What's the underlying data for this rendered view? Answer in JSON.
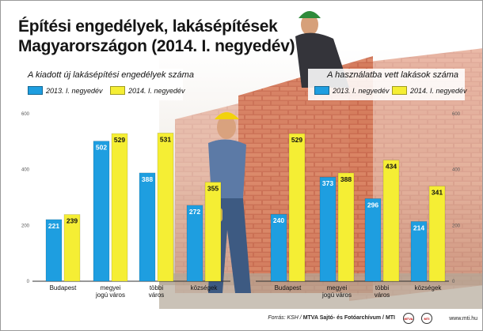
{
  "title": {
    "line1": "Építési engedélyek, lakásépítések",
    "line2": "Magyarországon (2014. I. negyedév)"
  },
  "colors": {
    "blue": "#1e9ee0",
    "yellow": "#f5ee34"
  },
  "chart_data": [
    {
      "type": "bar",
      "title": "A kiadott új lakásépítési engedélyek száma",
      "categories": [
        "Budapest",
        "megyei jogú város",
        "többi város",
        "községek"
      ],
      "series": [
        {
          "name": "2013. I. negyedév",
          "values": [
            221,
            502,
            388,
            272
          ]
        },
        {
          "name": "2014. I. negyedév",
          "values": [
            239,
            529,
            531,
            355
          ]
        }
      ],
      "ylim": [
        0,
        600
      ],
      "yticks": [
        "0",
        "200",
        "400",
        "600"
      ],
      "grid": false
    },
    {
      "type": "bar",
      "title": "A használatba vett lakások száma",
      "categories": [
        "Budapest",
        "megyei jogú város",
        "többi város",
        "községek"
      ],
      "series": [
        {
          "name": "2013. I. negyedév",
          "values": [
            240,
            373,
            296,
            214
          ]
        },
        {
          "name": "2014. I. negyedév",
          "values": [
            529,
            388,
            434,
            341
          ]
        }
      ],
      "ylim": [
        0,
        600
      ],
      "yticks": [
        "0",
        "200",
        "400",
        "600"
      ],
      "grid": false
    }
  ],
  "footer": {
    "source_prefix": "Forrás: KSH / ",
    "source_bold": "MTVA Sajtó- és Fotóarchívum / MTI",
    "logo1": "MTVA",
    "logo2": "MTI",
    "site": "www.mti.hu"
  }
}
